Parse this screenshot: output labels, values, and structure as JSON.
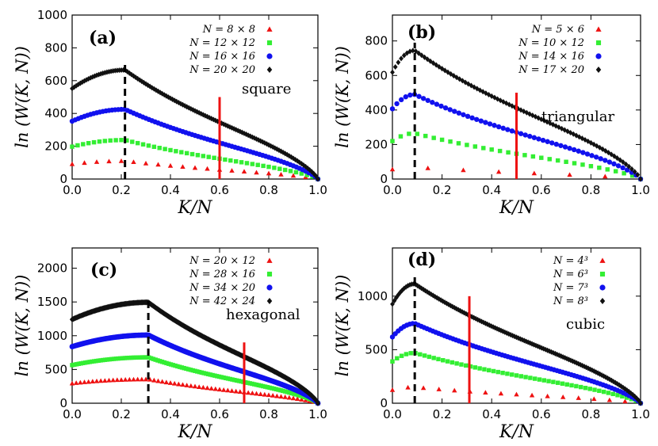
{
  "chart_data": [
    {
      "type": "scatter",
      "panel_label": "(a)",
      "lattice_label": "square",
      "xlabel": "K/N",
      "ylabel": "ln (W(K, N))",
      "xlim": [
        0,
        1
      ],
      "ylim": [
        0,
        1000
      ],
      "xticks": [
        "0.0",
        "0.2",
        "0.4",
        "0.6",
        "0.8",
        "1.0"
      ],
      "yticks": [
        "0",
        "200",
        "400",
        "600",
        "800",
        "1000"
      ],
      "peak_line_x": 0.215,
      "red_line": {
        "x": 0.6,
        "y_top": 500
      },
      "series": [
        {
          "name": "N = 8 × 8",
          "color": "#ee1111",
          "marker": "triangle",
          "points": 20,
          "peak": 110,
          "peak_x": 0.215
        },
        {
          "name": "N = 12 × 12",
          "color": "#33ee33",
          "marker": "square",
          "points": 45,
          "peak": 238,
          "peak_x": 0.215
        },
        {
          "name": "N = 16 × 16",
          "color": "#1111ee",
          "marker": "circle",
          "points": 80,
          "peak": 425,
          "peak_x": 0.215
        },
        {
          "name": "N = 20 × 20",
          "color": "#111111",
          "marker": "diamond",
          "points": 120,
          "peak": 665,
          "peak_x": 0.215
        }
      ]
    },
    {
      "type": "scatter",
      "panel_label": "(b)",
      "lattice_label": "triangular",
      "xlabel": "K/N",
      "ylabel": "ln (W(K, N))",
      "xlim": [
        0,
        1
      ],
      "ylim": [
        0,
        950
      ],
      "xticks": [
        "0.0",
        "0.2",
        "0.4",
        "0.6",
        "0.8",
        "1.0"
      ],
      "yticks": [
        "0",
        "200",
        "400",
        "600",
        "800"
      ],
      "peak_line_x": 0.09,
      "red_line": {
        "x": 0.5,
        "y_top": 500
      },
      "series": [
        {
          "name": "N = 5 × 6",
          "color": "#ee1111",
          "marker": "triangle",
          "points": 7,
          "peak": 68,
          "peak_x": 0.09
        },
        {
          "name": "N = 10 × 12",
          "color": "#33ee33",
          "marker": "square",
          "points": 30,
          "peak": 265,
          "peak_x": 0.09
        },
        {
          "name": "N = 14 × 16",
          "color": "#1111ee",
          "marker": "circle",
          "points": 56,
          "peak": 490,
          "peak_x": 0.09
        },
        {
          "name": "N = 17 × 20",
          "color": "#111111",
          "marker": "diamond",
          "points": 85,
          "peak": 745,
          "peak_x": 0.09
        }
      ]
    },
    {
      "type": "scatter",
      "panel_label": "(c)",
      "lattice_label": "hexagonal",
      "xlabel": "K/N",
      "ylabel": "ln (W(K, N))",
      "xlim": [
        0,
        1
      ],
      "ylim": [
        0,
        2300
      ],
      "xticks": [
        "0.0",
        "0.2",
        "0.4",
        "0.6",
        "0.8",
        "1.0"
      ],
      "yticks": [
        "0",
        "500",
        "1000",
        "1500",
        "2000"
      ],
      "peak_line_x": 0.31,
      "red_line": {
        "x": 0.7,
        "y_top": 900
      },
      "series": [
        {
          "name": "N = 20 × 12",
          "color": "#ee1111",
          "marker": "triangle",
          "points": 60,
          "peak": 355,
          "peak_x": 0.31
        },
        {
          "name": "N = 28 × 16",
          "color": "#33ee33",
          "marker": "square",
          "points": 112,
          "peak": 680,
          "peak_x": 0.31
        },
        {
          "name": "N = 34 × 20",
          "color": "#1111ee",
          "marker": "circle",
          "points": 170,
          "peak": 1010,
          "peak_x": 0.31
        },
        {
          "name": "N = 42 × 24",
          "color": "#111111",
          "marker": "diamond",
          "points": 252,
          "peak": 1495,
          "peak_x": 0.31
        }
      ]
    },
    {
      "type": "scatter",
      "panel_label": "(d)",
      "lattice_label": "cubic",
      "xlabel": "K/N",
      "ylabel": "ln (W(K, N))",
      "xlim": [
        0,
        1
      ],
      "ylim": [
        0,
        1450
      ],
      "xticks": [
        "0.0",
        "0.2",
        "0.4",
        "0.6",
        "0.8",
        "1.0"
      ],
      "yticks": [
        "0",
        "500",
        "1000"
      ],
      "peak_line_x": 0.09,
      "red_line": {
        "x": 0.31,
        "y_top": 1000
      },
      "series": [
        {
          "name": "N = 4³",
          "color": "#ee1111",
          "marker": "triangle",
          "points": 16,
          "peak": 150,
          "peak_x": 0.09
        },
        {
          "name": "N = 6³",
          "color": "#33ee33",
          "marker": "square",
          "points": 54,
          "peak": 470,
          "peak_x": 0.09
        },
        {
          "name": "N = 7³",
          "color": "#1111ee",
          "marker": "circle",
          "points": 86,
          "peak": 745,
          "peak_x": 0.09
        },
        {
          "name": "N = 8³",
          "color": "#111111",
          "marker": "diamond",
          "points": 128,
          "peak": 1115,
          "peak_x": 0.09
        }
      ]
    }
  ]
}
